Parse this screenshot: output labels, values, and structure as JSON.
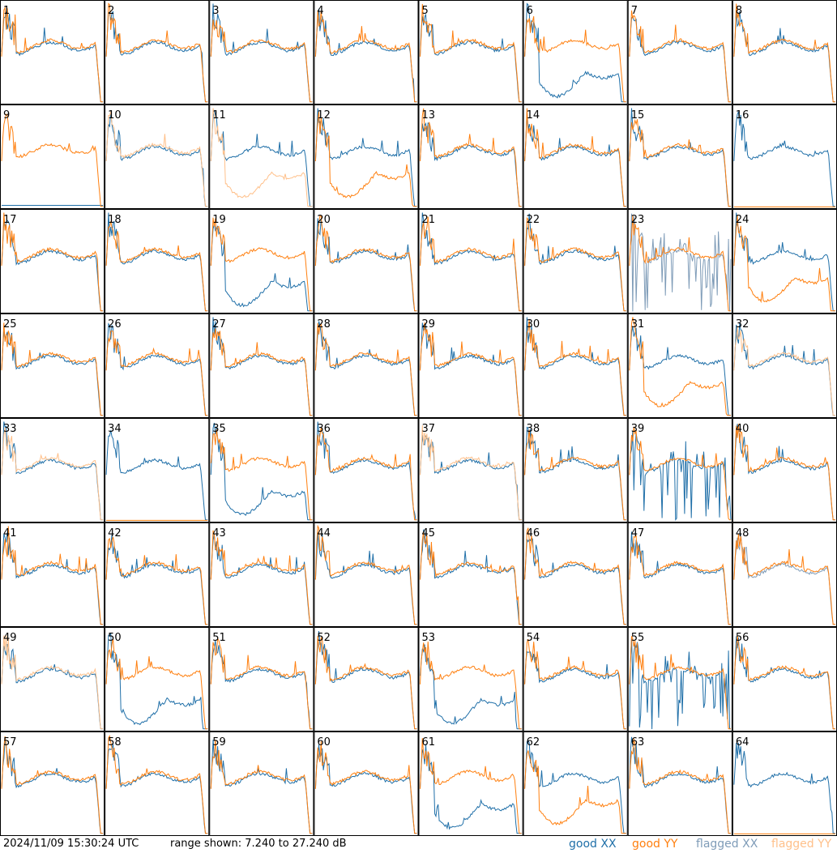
{
  "chart_data": {
    "type": "line",
    "layout": "small-multiples",
    "rows": 8,
    "cols": 8,
    "panel_labels": [
      "1",
      "2",
      "3",
      "4",
      "5",
      "6",
      "7",
      "8",
      "9",
      "10",
      "11",
      "12",
      "13",
      "14",
      "15",
      "16",
      "17",
      "18",
      "19",
      "20",
      "21",
      "22",
      "23",
      "24",
      "25",
      "26",
      "27",
      "28",
      "29",
      "30",
      "31",
      "32",
      "33",
      "34",
      "35",
      "36",
      "37",
      "38",
      "39",
      "40",
      "41",
      "42",
      "43",
      "44",
      "45",
      "46",
      "47",
      "48",
      "49",
      "50",
      "51",
      "52",
      "53",
      "54",
      "55",
      "56",
      "57",
      "58",
      "59",
      "60",
      "61",
      "62",
      "63",
      "64"
    ],
    "ylim_db": [
      7.24,
      27.24
    ],
    "series": [
      {
        "name": "good XX",
        "color": "#1f6fa8"
      },
      {
        "name": "good YY",
        "color": "#ff7f0e"
      },
      {
        "name": "flagged XX",
        "color": "#7f9cb8"
      },
      {
        "name": "flagged YY",
        "color": "#ffc08a"
      }
    ],
    "panel_states": {
      "flagged_xx": [
        23,
        48
      ],
      "flagged_yy": [
        10,
        11,
        32,
        33,
        37,
        49
      ],
      "dead_xx": [
        9
      ],
      "dead_yy": [
        16,
        34,
        64
      ],
      "xx_low": [
        6,
        19,
        35,
        50,
        53,
        61
      ],
      "yy_low": [
        11,
        12,
        24,
        31,
        62
      ],
      "xx_noise_spike": [
        39,
        55
      ]
    }
  },
  "footer": {
    "timestamp": "2024/11/09 15:30:24 UTC",
    "range_text": "range shown: 7.240 to 27.240 dB",
    "legend": [
      {
        "label": "good XX",
        "color": "#1f6fa8"
      },
      {
        "label": "good YY",
        "color": "#ff7f0e"
      },
      {
        "label": "flagged XX",
        "color": "#7f9cb8"
      },
      {
        "label": "flagged YY",
        "color": "#ffc08a"
      }
    ]
  }
}
